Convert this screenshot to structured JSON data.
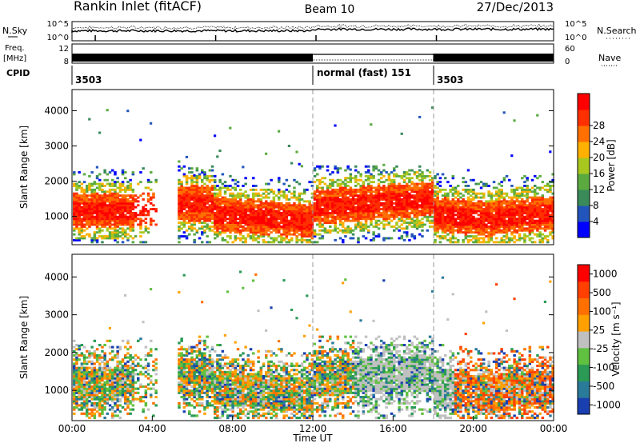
{
  "header": {
    "station": "Rankin Inlet (fitACF)",
    "beam": "Beam 10",
    "date": "27/Dec/2013"
  },
  "strip": {
    "nsky_label": "N.Sky",
    "nsky_ticks": [
      "10^5",
      "10^0"
    ],
    "nsearch_label": "N.Search",
    "nsearch_ticks": [
      "10^5",
      "10^0"
    ],
    "freq_label": "Freq.",
    "freq_unit": "[MHz]",
    "freq_ticks": [
      "12",
      "8"
    ],
    "nave_label": "Nave",
    "nave_ticks": [
      "60",
      "0"
    ],
    "cpid_label": "CPID",
    "cpid_segments": [
      {
        "start_hour": 0,
        "end_hour": 12,
        "label": "3503"
      },
      {
        "start_hour": 12,
        "end_hour": 18,
        "label": "normal (fast) 151"
      },
      {
        "start_hour": 18,
        "end_hour": 24,
        "label": "3503"
      }
    ]
  },
  "colors": {
    "power_scale": [
      "#0000ff",
      "#2255bb",
      "#3a8a5a",
      "#5aaa40",
      "#a8c820",
      "#ffb000",
      "#ff7000",
      "#ff3000",
      "#ff0000"
    ],
    "velocity_scale": [
      "#1a3fb0",
      "#2a7a9a",
      "#2a9a55",
      "#60c040",
      "#c0c0c0",
      "#ffa000",
      "#ff7000",
      "#ff4000",
      "#ff0000"
    ],
    "ground_scatter": "#c0c0c0"
  },
  "chart_data": [
    {
      "type": "heatmap",
      "panel": "power",
      "ylabel": "Slant Range [km]",
      "ylim": [
        200,
        4600
      ],
      "yticks": [
        1000,
        2000,
        3000,
        4000
      ],
      "xlim": [
        0,
        24
      ],
      "colorbar_label": "Power [dB]",
      "colorbar_ticks": [
        "4",
        "8",
        "12",
        "16",
        "20",
        "24",
        "28"
      ],
      "colorbar_range": [
        0,
        32
      ]
    },
    {
      "type": "heatmap",
      "panel": "velocity",
      "ylabel": "Slant Range [km]",
      "ylim": [
        200,
        4600
      ],
      "yticks": [
        1000,
        2000,
        3000,
        4000
      ],
      "xlim": [
        0,
        24
      ],
      "colorbar_label": "Velocity [m s⁻¹]",
      "colorbar_ticks": [
        "1000",
        "500",
        "100",
        "25",
        "-25",
        "-100",
        "-500",
        "-1000"
      ]
    }
  ],
  "time_axis": {
    "xlabel": "Time UT",
    "ticks": [
      "00:00",
      "04:00",
      "08:00",
      "12:00",
      "16:00",
      "20:00",
      "00:00"
    ],
    "tick_hours": [
      0,
      4,
      8,
      12,
      16,
      20,
      24
    ]
  }
}
